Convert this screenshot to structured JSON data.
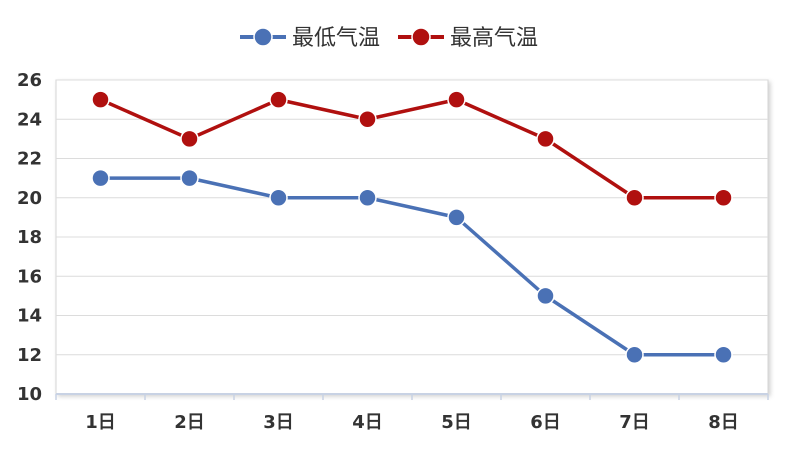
{
  "chart_data": {
    "type": "line",
    "title": "",
    "xlabel": "",
    "ylabel": "",
    "categories": [
      "1日",
      "2日",
      "3日",
      "4日",
      "5日",
      "6日",
      "7日",
      "8日"
    ],
    "y_ticks": [
      "10",
      "12",
      "14",
      "16",
      "18",
      "20",
      "22",
      "24",
      "26"
    ],
    "ylim": [
      10,
      26
    ],
    "grid": true,
    "legend_position": "top-center",
    "series": [
      {
        "name": "最低气温",
        "color": "#4a71b5",
        "values": [
          21,
          21,
          20,
          20,
          19,
          15,
          12,
          12
        ]
      },
      {
        "name": "最高气温",
        "color": "#b0100f",
        "values": [
          25,
          23,
          25,
          24,
          25,
          23,
          20,
          20
        ]
      }
    ]
  }
}
